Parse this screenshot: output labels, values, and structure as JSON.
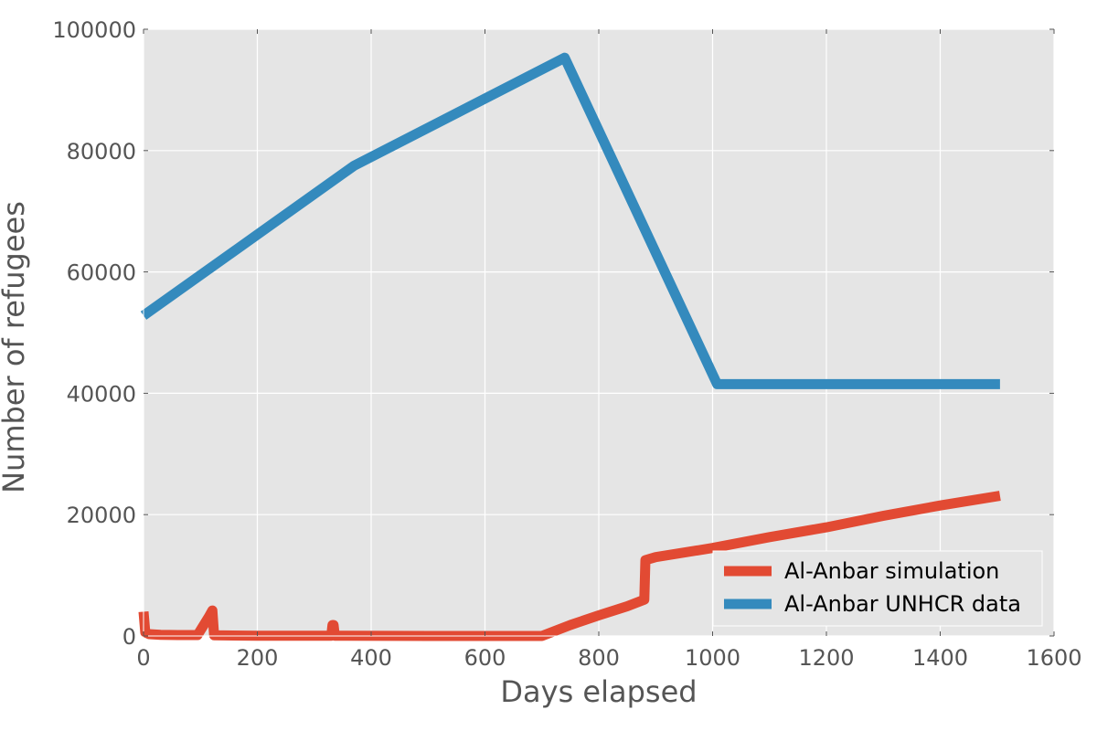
{
  "chart_data": {
    "type": "line",
    "title": "",
    "xlabel": "Days elapsed",
    "ylabel": "Number of refugees",
    "xlim": [
      0,
      1600
    ],
    "ylim": [
      0,
      100000
    ],
    "x_ticks": [
      0,
      200,
      400,
      600,
      800,
      1000,
      1200,
      1400,
      1600
    ],
    "y_ticks": [
      0,
      20000,
      40000,
      60000,
      80000,
      100000
    ],
    "grid": true,
    "legend_position": "lower-right",
    "series": [
      {
        "name": "Al-Anbar simulation",
        "color": "#E24A33",
        "points": [
          [
            0,
            4000
          ],
          [
            3,
            600
          ],
          [
            10,
            300
          ],
          [
            30,
            200
          ],
          [
            60,
            150
          ],
          [
            95,
            150
          ],
          [
            115,
            3200
          ],
          [
            121,
            4200
          ],
          [
            124,
            100
          ],
          [
            200,
            50
          ],
          [
            330,
            50
          ],
          [
            332,
            1800
          ],
          [
            334,
            1800
          ],
          [
            336,
            50
          ],
          [
            500,
            0
          ],
          [
            700,
            0
          ],
          [
            750,
            1800
          ],
          [
            800,
            3400
          ],
          [
            850,
            4900
          ],
          [
            880,
            6000
          ],
          [
            882,
            12500
          ],
          [
            900,
            13000
          ],
          [
            1000,
            14500
          ],
          [
            1100,
            16300
          ],
          [
            1200,
            17900
          ],
          [
            1300,
            19800
          ],
          [
            1400,
            21500
          ],
          [
            1505,
            23100
          ]
        ]
      },
      {
        "name": "Al-Anbar UNHCR data",
        "color": "#348ABD",
        "points": [
          [
            0,
            52800
          ],
          [
            370,
            77500
          ],
          [
            740,
            95300
          ],
          [
            1008,
            41500
          ],
          [
            1505,
            41500
          ]
        ]
      }
    ]
  }
}
